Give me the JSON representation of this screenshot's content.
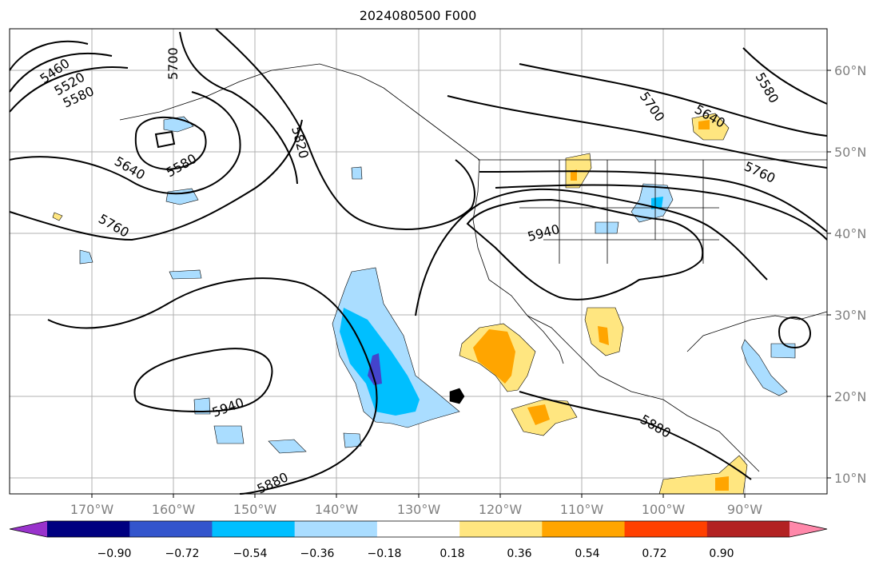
{
  "title": "2024080500 F000",
  "lon_labels": [
    "170°W",
    "160°W",
    "150°W",
    "140°W",
    "130°W",
    "120°W",
    "110°W",
    "100°W",
    "90°W"
  ],
  "lat_labels": [
    "10°N",
    "20°N",
    "30°N",
    "40°N",
    "50°N",
    "60°N"
  ],
  "contour_labels": [
    "5460",
    "5520",
    "5580",
    "5700",
    "5580",
    "5640",
    "5820",
    "5760",
    "5940",
    "5700",
    "5640",
    "5580",
    "5760",
    "5940",
    "5880",
    "5880"
  ],
  "colorbar": {
    "ticks": [
      "−0.90",
      "−0.72",
      "−0.54",
      "−0.36",
      "−0.18",
      "0.18",
      "0.36",
      "0.54",
      "0.72",
      "0.90"
    ],
    "colors": [
      "#9933cc",
      "#000080",
      "#3355cc",
      "#00bfff",
      "#aaddff",
      "#ffffff",
      "#ffe680",
      "#ffa500",
      "#ff4000",
      "#b22222",
      "#ff88aa"
    ]
  }
}
